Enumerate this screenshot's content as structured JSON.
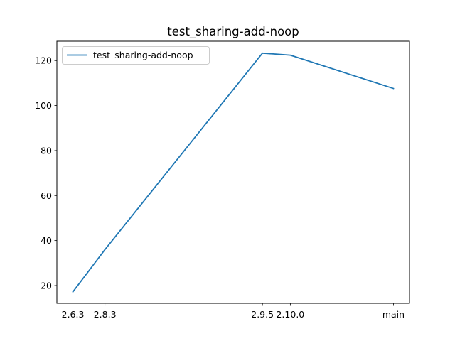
{
  "chart_data": {
    "type": "line",
    "title": "test_sharing-add-noop",
    "xlabel": "",
    "ylabel": "",
    "x": [
      0,
      1.15,
      6.8,
      7.8,
      11.5
    ],
    "x_tick_labels": [
      "2.6.3",
      "2.8.3",
      "2.9.5",
      "2.10.0",
      "main"
    ],
    "xlim": [
      -0.575,
      12.075
    ],
    "ylim": [
      12.1,
      128.6
    ],
    "y_ticks": [
      20,
      40,
      60,
      80,
      100,
      120
    ],
    "series": [
      {
        "name": "test_sharing-add-noop",
        "color": "#1f77b4",
        "values": [
          17.2,
          36.0,
          123.3,
          122.4,
          107.6
        ]
      }
    ],
    "grid": false,
    "legend_position": "upper-left"
  }
}
